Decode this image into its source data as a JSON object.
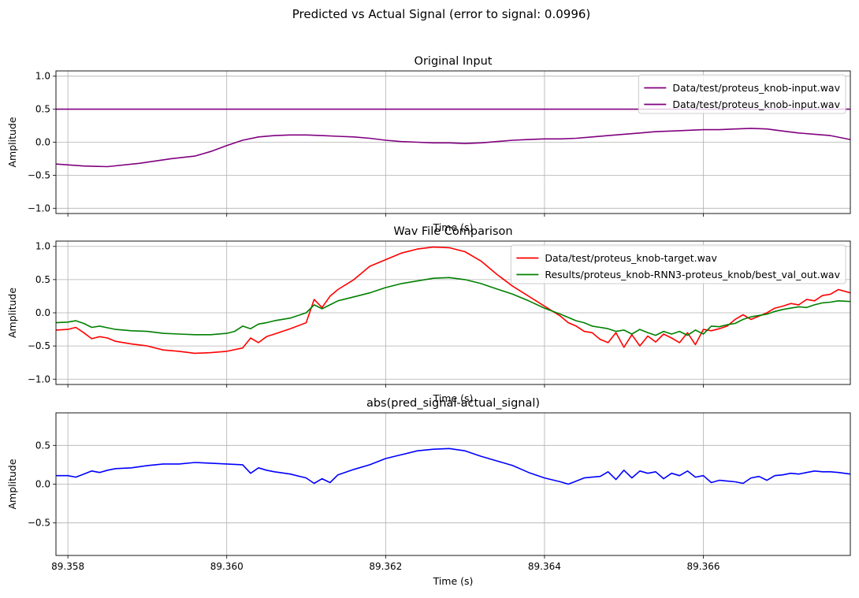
{
  "figure": {
    "suptitle": "Predicted vs Actual Signal (error to signal: 0.0996)",
    "xlabel": "Time (s)",
    "xlim": [
      89.35785,
      89.36785
    ],
    "xticks": [
      89.358,
      89.36,
      89.362,
      89.364,
      89.366
    ],
    "xtick_labels": [
      "89.358",
      "89.360",
      "89.362",
      "89.364",
      "89.366"
    ]
  },
  "chart_data": [
    {
      "type": "line",
      "title": "Original Input",
      "xlabel": "Time (s)",
      "ylabel": "Amplitude",
      "ylim": [
        -1.08,
        1.08
      ],
      "yticks": [
        -1.0,
        -0.5,
        0.0,
        0.5,
        1.0
      ],
      "ytick_labels": [
        "−1.0",
        "−0.5",
        "0.0",
        "0.5",
        "1.0"
      ],
      "grid": true,
      "legend": "upper right",
      "series": [
        {
          "name": "Data/test/proteus_knob-input.wav",
          "color": "#800080",
          "x": [
            89.35785,
            89.36785
          ],
          "values": [
            0.5,
            0.5
          ]
        },
        {
          "name": "Data/test/proteus_knob-input.wav",
          "color": "#800080",
          "x": [
            89.35785,
            89.3582,
            89.3585,
            89.3589,
            89.3593,
            89.3596,
            89.3598,
            89.36,
            89.3602,
            89.3604,
            89.3606,
            89.3608,
            89.361,
            89.3612,
            89.3614,
            89.3616,
            89.3618,
            89.362,
            89.3622,
            89.3624,
            89.3626,
            89.3628,
            89.363,
            89.3632,
            89.3634,
            89.3636,
            89.3638,
            89.364,
            89.3642,
            89.3644,
            89.3646,
            89.3648,
            89.365,
            89.3652,
            89.3654,
            89.3656,
            89.3658,
            89.366,
            89.3662,
            89.3664,
            89.3666,
            89.3668,
            89.367,
            89.3672,
            89.3674,
            89.3676,
            89.36785
          ],
          "values": [
            -0.33,
            -0.36,
            -0.37,
            -0.32,
            -0.25,
            -0.21,
            -0.14,
            -0.05,
            0.03,
            0.08,
            0.1,
            0.11,
            0.11,
            0.1,
            0.09,
            0.08,
            0.06,
            0.03,
            0.01,
            0.0,
            -0.01,
            -0.01,
            -0.02,
            -0.01,
            0.01,
            0.03,
            0.04,
            0.05,
            0.05,
            0.06,
            0.08,
            0.1,
            0.12,
            0.14,
            0.16,
            0.17,
            0.18,
            0.19,
            0.19,
            0.2,
            0.21,
            0.2,
            0.17,
            0.14,
            0.12,
            0.1,
            0.04
          ]
        }
      ]
    },
    {
      "type": "line",
      "title": "Wav File Comparison",
      "xlabel": "Time (s)",
      "ylabel": "Amplitude",
      "ylim": [
        -1.08,
        1.08
      ],
      "yticks": [
        -1.0,
        -0.5,
        0.0,
        0.5,
        1.0
      ],
      "ytick_labels": [
        "−1.0",
        "−0.5",
        "0.0",
        "0.5",
        "1.0"
      ],
      "grid": true,
      "legend": "upper right",
      "series": [
        {
          "name": "Data/test/proteus_knob-target.wav",
          "color": "#ff0000",
          "x": [
            89.35785,
            89.358,
            89.3581,
            89.3582,
            89.3583,
            89.3584,
            89.3585,
            89.3586,
            89.3588,
            89.359,
            89.3592,
            89.3594,
            89.3596,
            89.3598,
            89.36,
            89.3602,
            89.3603,
            89.3604,
            89.3605,
            89.3606,
            89.3608,
            89.361,
            89.3611,
            89.3612,
            89.3613,
            89.3614,
            89.3616,
            89.3618,
            89.362,
            89.3622,
            89.3624,
            89.3626,
            89.3628,
            89.363,
            89.3632,
            89.3634,
            89.3636,
            89.3638,
            89.364,
            89.3642,
            89.3643,
            89.3644,
            89.3645,
            89.3646,
            89.3647,
            89.3648,
            89.3649,
            89.365,
            89.3651,
            89.3652,
            89.3653,
            89.3654,
            89.3655,
            89.3656,
            89.3657,
            89.3658,
            89.3659,
            89.366,
            89.3661,
            89.3662,
            89.3663,
            89.3664,
            89.3665,
            89.3666,
            89.3667,
            89.3668,
            89.3669,
            89.367,
            89.3671,
            89.3672,
            89.3673,
            89.3674,
            89.3675,
            89.3676,
            89.3677,
            89.36785
          ],
          "values": [
            -0.26,
            -0.25,
            -0.22,
            -0.3,
            -0.39,
            -0.36,
            -0.38,
            -0.43,
            -0.47,
            -0.5,
            -0.56,
            -0.58,
            -0.61,
            -0.6,
            -0.58,
            -0.53,
            -0.38,
            -0.45,
            -0.36,
            -0.32,
            -0.24,
            -0.15,
            0.2,
            0.08,
            0.25,
            0.35,
            0.5,
            0.7,
            0.8,
            0.9,
            0.96,
            0.99,
            0.98,
            0.92,
            0.78,
            0.58,
            0.4,
            0.25,
            0.1,
            -0.05,
            -0.15,
            -0.2,
            -0.28,
            -0.3,
            -0.4,
            -0.45,
            -0.3,
            -0.52,
            -0.33,
            -0.5,
            -0.35,
            -0.44,
            -0.32,
            -0.38,
            -0.45,
            -0.3,
            -0.48,
            -0.25,
            -0.27,
            -0.24,
            -0.2,
            -0.1,
            -0.03,
            -0.1,
            -0.05,
            0.0,
            0.07,
            0.1,
            0.14,
            0.12,
            0.2,
            0.18,
            0.26,
            0.28,
            0.35,
            0.3
          ]
        },
        {
          "name": "Results/proteus_knob-RNN3-proteus_knob/best_val_out.wav",
          "color": "#008000",
          "x": [
            89.35785,
            89.358,
            89.3581,
            89.3582,
            89.3583,
            89.3584,
            89.3586,
            89.3588,
            89.359,
            89.3592,
            89.3594,
            89.3596,
            89.3598,
            89.36,
            89.3601,
            89.3602,
            89.3603,
            89.3604,
            89.3605,
            89.3606,
            89.3608,
            89.361,
            89.3611,
            89.3612,
            89.3613,
            89.3614,
            89.3616,
            89.3618,
            89.362,
            89.3622,
            89.3624,
            89.3626,
            89.3628,
            89.363,
            89.3632,
            89.3634,
            89.3636,
            89.3638,
            89.364,
            89.3642,
            89.3644,
            89.3645,
            89.3646,
            89.3647,
            89.3648,
            89.3649,
            89.365,
            89.3651,
            89.3652,
            89.3653,
            89.3654,
            89.3655,
            89.3656,
            89.3657,
            89.3658,
            89.3659,
            89.366,
            89.3661,
            89.3662,
            89.3663,
            89.3664,
            89.3665,
            89.3666,
            89.3667,
            89.3668,
            89.3669,
            89.367,
            89.3671,
            89.3672,
            89.3673,
            89.3674,
            89.3675,
            89.3676,
            89.3677,
            89.36785
          ],
          "values": [
            -0.15,
            -0.14,
            -0.12,
            -0.16,
            -0.22,
            -0.2,
            -0.25,
            -0.27,
            -0.28,
            -0.31,
            -0.32,
            -0.33,
            -0.33,
            -0.31,
            -0.28,
            -0.2,
            -0.24,
            -0.17,
            -0.15,
            -0.12,
            -0.08,
            0.0,
            0.12,
            0.06,
            0.12,
            0.18,
            0.24,
            0.3,
            0.38,
            0.44,
            0.48,
            0.52,
            0.53,
            0.5,
            0.44,
            0.36,
            0.28,
            0.18,
            0.07,
            -0.02,
            -0.12,
            -0.15,
            -0.2,
            -0.22,
            -0.24,
            -0.28,
            -0.26,
            -0.32,
            -0.25,
            -0.3,
            -0.34,
            -0.28,
            -0.32,
            -0.28,
            -0.34,
            -0.26,
            -0.32,
            -0.2,
            -0.21,
            -0.18,
            -0.16,
            -0.1,
            -0.06,
            -0.04,
            -0.02,
            0.02,
            0.05,
            0.07,
            0.09,
            0.08,
            0.12,
            0.15,
            0.16,
            0.18,
            0.17
          ]
        }
      ]
    },
    {
      "type": "line",
      "title": "abs(pred_signal-actual_signal)",
      "xlabel": "Time (s)",
      "ylabel": "Amplitude",
      "ylim": [
        -0.92,
        0.92
      ],
      "yticks": [
        -0.5,
        0.0,
        0.5
      ],
      "ytick_labels": [
        "−0.5",
        "0.0",
        "0.5"
      ],
      "grid": true,
      "legend": "none",
      "series": [
        {
          "name": "abs(pred_signal-actual_signal)",
          "color": "#0000ff",
          "x": [
            89.35785,
            89.358,
            89.3581,
            89.3582,
            89.3583,
            89.3584,
            89.3585,
            89.3586,
            89.3588,
            89.359,
            89.3592,
            89.3594,
            89.3596,
            89.3598,
            89.36,
            89.3602,
            89.3603,
            89.3604,
            89.3605,
            89.3606,
            89.3608,
            89.361,
            89.3611,
            89.3612,
            89.3613,
            89.3614,
            89.3616,
            89.3618,
            89.362,
            89.3622,
            89.3624,
            89.3626,
            89.3628,
            89.363,
            89.3632,
            89.3634,
            89.3636,
            89.3638,
            89.364,
            89.3642,
            89.3643,
            89.3644,
            89.3645,
            89.3646,
            89.3647,
            89.3648,
            89.3649,
            89.365,
            89.3651,
            89.3652,
            89.3653,
            89.3654,
            89.3655,
            89.3656,
            89.3657,
            89.3658,
            89.3659,
            89.366,
            89.3661,
            89.3662,
            89.3663,
            89.3664,
            89.3665,
            89.3666,
            89.3667,
            89.3668,
            89.3669,
            89.367,
            89.3671,
            89.3672,
            89.3673,
            89.3674,
            89.3675,
            89.3676,
            89.3677,
            89.36785
          ],
          "values": [
            0.11,
            0.11,
            0.09,
            0.13,
            0.17,
            0.15,
            0.18,
            0.2,
            0.21,
            0.24,
            0.26,
            0.26,
            0.28,
            0.27,
            0.26,
            0.25,
            0.14,
            0.21,
            0.18,
            0.16,
            0.13,
            0.08,
            0.01,
            0.07,
            0.02,
            0.12,
            0.19,
            0.25,
            0.33,
            0.38,
            0.43,
            0.45,
            0.46,
            0.43,
            0.36,
            0.3,
            0.24,
            0.15,
            0.08,
            0.03,
            0.0,
            0.04,
            0.08,
            0.09,
            0.1,
            0.16,
            0.06,
            0.18,
            0.08,
            0.17,
            0.14,
            0.16,
            0.07,
            0.14,
            0.11,
            0.17,
            0.09,
            0.11,
            0.02,
            0.05,
            0.04,
            0.03,
            0.01,
            0.08,
            0.1,
            0.05,
            0.11,
            0.12,
            0.14,
            0.13,
            0.15,
            0.17,
            0.16,
            0.16,
            0.15,
            0.13
          ]
        }
      ]
    }
  ]
}
